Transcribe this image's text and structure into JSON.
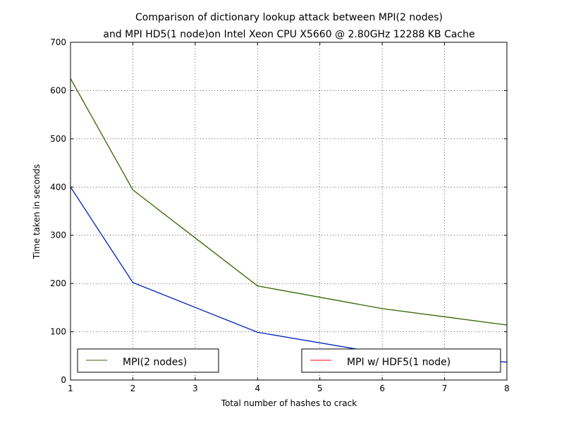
{
  "chart_data": {
    "type": "line",
    "title_line1": "Comparison of dictionary lookup attack between MPI(2 nodes)",
    "title_line2": "and MPI HD5(1 node)on Intel Xeon CPU X5660 @ 2.80GHz 12288 KB Cache",
    "xlabel": "Total number of hashes to crack",
    "ylabel": "Time taken in seconds",
    "xlim": [
      1,
      8
    ],
    "ylim": [
      0,
      700
    ],
    "xticks": [
      1,
      2,
      3,
      4,
      5,
      6,
      7,
      8
    ],
    "yticks": [
      0,
      100,
      200,
      300,
      400,
      500,
      600,
      700
    ],
    "grid": true,
    "series": [
      {
        "name": "MPI(2 nodes)",
        "color": "#336600",
        "x": [
          1,
          2,
          4,
          6,
          8
        ],
        "y": [
          625,
          394,
          195,
          148,
          114
        ]
      },
      {
        "name": "MPI w/ HDF5(1 node)",
        "color": "#0022bb",
        "legend_color": "#ff0000",
        "x": [
          1,
          2,
          4,
          6,
          8
        ],
        "y": [
          400,
          202,
          99,
          55,
          37
        ]
      }
    ],
    "legend": [
      {
        "label": "MPI(2 nodes)",
        "color": "#336600",
        "placement": "lower-left"
      },
      {
        "label": "MPI w/ HDF5(1 node)",
        "color": "#ff0000",
        "placement": "lower-right"
      }
    ]
  }
}
